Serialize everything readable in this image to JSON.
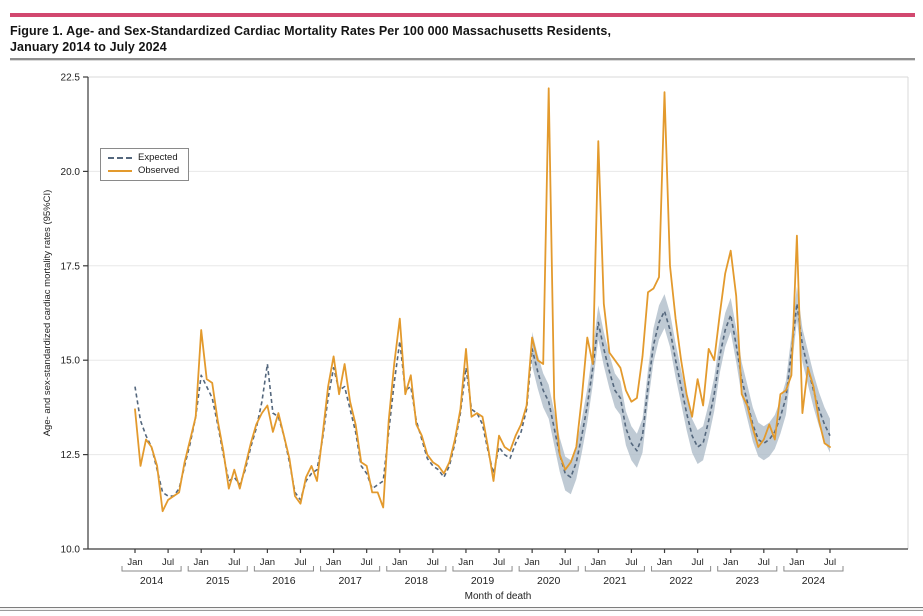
{
  "figure": {
    "title_line1": "Figure 1. Age- and Sex-Standardized Cardiac Mortality Rates Per 100 000 Massachusetts Residents,",
    "title_line2": "January 2014 to July 2024"
  },
  "colors": {
    "header_rule": "#d2486f",
    "title_text": "#141414",
    "observed_line": "#e39a2d",
    "expected_line": "#54677d",
    "ci_band": "#a9b8c6",
    "gridline": "#e8e8e8",
    "axis": "#3a3a3a",
    "plot_border": "#d8d8d8",
    "tick_text": "#222222"
  },
  "chart_data": {
    "type": "line",
    "title": "Age- and Sex-Standardized Cardiac Mortality Rates Per 100 000 Massachusetts Residents, January 2014 to July 2024",
    "xlabel": "Month of death",
    "ylabel": "Age- and sex-standardized cardiac mortality rates (95%CI)",
    "ylim": [
      10.0,
      22.5
    ],
    "yticks": [
      10.0,
      12.5,
      15.0,
      17.5,
      20.0,
      22.5
    ],
    "grid": true,
    "x_start": "2014-01",
    "x_end": "2024-07",
    "years": [
      2014,
      2015,
      2016,
      2017,
      2018,
      2019,
      2020,
      2021,
      2022,
      2023,
      2024
    ],
    "month_tick_labels": [
      "Jan",
      "Jul"
    ],
    "legend_position": "top-left",
    "legend": [
      {
        "label": "Expected",
        "style": "dashed"
      },
      {
        "label": "Observed",
        "style": "solid"
      }
    ],
    "series": [
      {
        "name": "Expected",
        "dashed": true,
        "ci_halfwidth": 0.45,
        "ci_from_index": 72,
        "values": [
          14.3,
          13.4,
          13.0,
          12.7,
          12.1,
          11.5,
          11.4,
          11.4,
          11.6,
          12.2,
          12.8,
          13.5,
          14.6,
          14.3,
          14.0,
          13.3,
          12.5,
          11.8,
          11.9,
          11.7,
          12.1,
          12.7,
          13.2,
          13.9,
          14.9,
          13.6,
          13.5,
          13.0,
          12.3,
          11.5,
          11.3,
          11.8,
          12.0,
          12.1,
          12.9,
          14.0,
          14.8,
          14.2,
          14.3,
          13.7,
          13.1,
          12.2,
          12.0,
          11.6,
          11.7,
          11.8,
          13.1,
          14.4,
          15.5,
          14.2,
          14.3,
          13.4,
          12.9,
          12.4,
          12.2,
          12.1,
          11.9,
          12.2,
          12.8,
          13.6,
          14.8,
          13.7,
          13.6,
          13.3,
          12.6,
          12.0,
          12.7,
          12.5,
          12.4,
          12.8,
          13.1,
          13.7,
          15.3,
          14.7,
          14.2,
          13.9,
          13.2,
          12.5,
          12.0,
          11.9,
          12.3,
          13.0,
          13.8,
          14.8,
          16.0,
          15.3,
          14.7,
          14.2,
          14.0,
          13.2,
          12.8,
          12.6,
          13.0,
          14.3,
          15.4,
          16.0,
          16.3,
          15.8,
          15.0,
          14.3,
          13.6,
          13.0,
          12.7,
          12.8,
          13.4,
          14.1,
          15.1,
          15.8,
          16.2,
          15.4,
          14.5,
          13.9,
          13.3,
          12.9,
          12.8,
          12.9,
          13.1,
          13.5,
          14.0,
          15.2,
          16.5,
          15.4,
          14.8,
          14.2,
          13.7,
          13.3,
          13.0
        ]
      },
      {
        "name": "Observed",
        "dashed": false,
        "values": [
          13.7,
          12.2,
          12.9,
          12.7,
          12.2,
          11.0,
          11.3,
          11.4,
          11.5,
          12.3,
          12.9,
          13.5,
          15.8,
          14.5,
          14.4,
          13.4,
          12.6,
          11.6,
          12.1,
          11.6,
          12.2,
          12.8,
          13.3,
          13.6,
          13.8,
          13.1,
          13.6,
          13.0,
          12.4,
          11.4,
          11.2,
          11.9,
          12.2,
          11.8,
          13.0,
          14.3,
          15.1,
          14.1,
          14.9,
          13.9,
          13.3,
          12.3,
          12.2,
          11.5,
          11.5,
          11.1,
          13.4,
          14.9,
          16.1,
          14.1,
          14.6,
          13.3,
          13.0,
          12.5,
          12.3,
          12.2,
          12.0,
          12.3,
          12.9,
          13.7,
          15.3,
          13.5,
          13.6,
          13.5,
          12.7,
          11.8,
          13.0,
          12.7,
          12.6,
          13.0,
          13.3,
          13.8,
          15.6,
          15.0,
          14.9,
          22.2,
          14.0,
          12.5,
          12.1,
          12.3,
          12.7,
          14.0,
          15.6,
          14.9,
          20.8,
          16.5,
          15.2,
          15.0,
          14.8,
          14.2,
          13.9,
          14.0,
          15.1,
          16.8,
          16.9,
          17.2,
          22.1,
          17.5,
          16.1,
          15.0,
          14.1,
          13.5,
          14.5,
          13.8,
          15.3,
          15.0,
          16.2,
          17.3,
          17.9,
          16.7,
          14.1,
          13.8,
          13.2,
          12.7,
          12.9,
          13.3,
          12.9,
          14.1,
          14.2,
          14.6,
          18.3,
          13.6,
          14.8,
          14.3,
          13.4,
          12.8,
          12.7
        ]
      }
    ]
  }
}
